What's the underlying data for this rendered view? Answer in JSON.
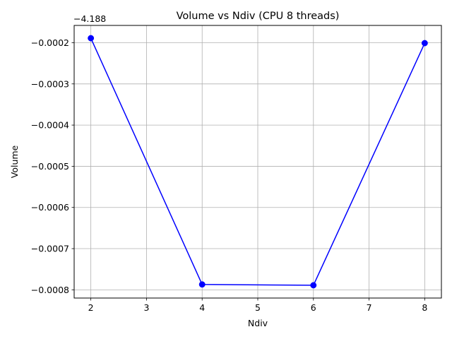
{
  "chart_data": {
    "type": "line",
    "title": "Volume vs Ndiv (CPU 8 threads)",
    "xlabel": "Ndiv",
    "ylabel": "Volume",
    "offset_label": "−4.188",
    "y_offset": -4.188,
    "x": [
      2,
      4,
      6,
      8
    ],
    "y_rel": [
      -0.000189,
      -0.000787,
      -0.000789,
      -0.000201
    ],
    "xlim": [
      1.7,
      8.3
    ],
    "ylim_rel": [
      -0.00082,
      -0.000158
    ],
    "xticks": [
      2,
      3,
      4,
      5,
      6,
      7,
      8
    ],
    "xtick_labels": [
      "2",
      "3",
      "4",
      "5",
      "6",
      "7",
      "8"
    ],
    "yticks_rel": [
      -0.0002,
      -0.0003,
      -0.0004,
      -0.0005,
      -0.0006,
      -0.0007,
      -0.0008
    ],
    "ytick_labels": [
      "−0.0002",
      "−0.0003",
      "−0.0004",
      "−0.0005",
      "−0.0006",
      "−0.0007",
      "−0.0008"
    ],
    "grid": true,
    "series": [
      {
        "name": "Volume",
        "color": "#0000ff",
        "marker": "circle"
      }
    ]
  }
}
